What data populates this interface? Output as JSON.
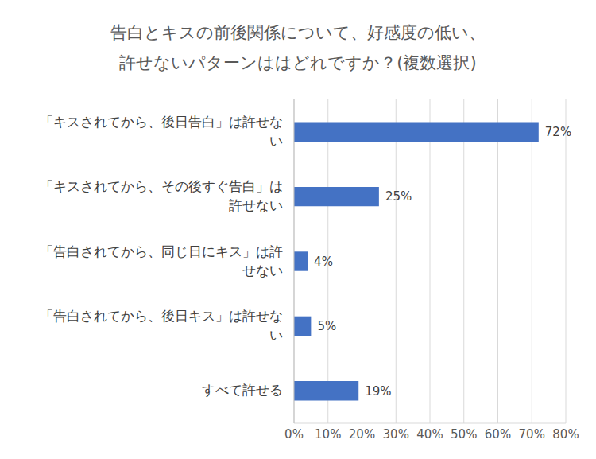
{
  "chart_data": {
    "type": "bar",
    "title": "告白とキスの前後関係について、好感度の低い、\n許せないパターンははどれですか？(複数選択)",
    "orientation": "horizontal",
    "categories": [
      "「キスされてから、後日告白」は許せない",
      "「キスされてから、その後すぐ告白」は許せない",
      "「告白されてから、同じ日にキス」は許せない",
      "「告白されてから、後日キス」は許せない",
      "すべて許せる"
    ],
    "values": [
      72,
      25,
      4,
      5,
      19
    ],
    "value_labels": [
      "72%",
      "25%",
      "4%",
      "5%",
      "19%"
    ],
    "data_labels": true,
    "color": "#4472c4",
    "xlim": [
      0,
      80
    ],
    "xticks": [
      {
        "value": 0,
        "label": "0%"
      },
      {
        "value": 10,
        "label": "10%"
      },
      {
        "value": 20,
        "label": "20%"
      },
      {
        "value": 30,
        "label": "30%"
      },
      {
        "value": 40,
        "label": "40%"
      },
      {
        "value": 50,
        "label": "50%"
      },
      {
        "value": 60,
        "label": "60%"
      },
      {
        "value": 70,
        "label": "70%"
      },
      {
        "value": 80,
        "label": "80%"
      }
    ],
    "grid": true
  }
}
